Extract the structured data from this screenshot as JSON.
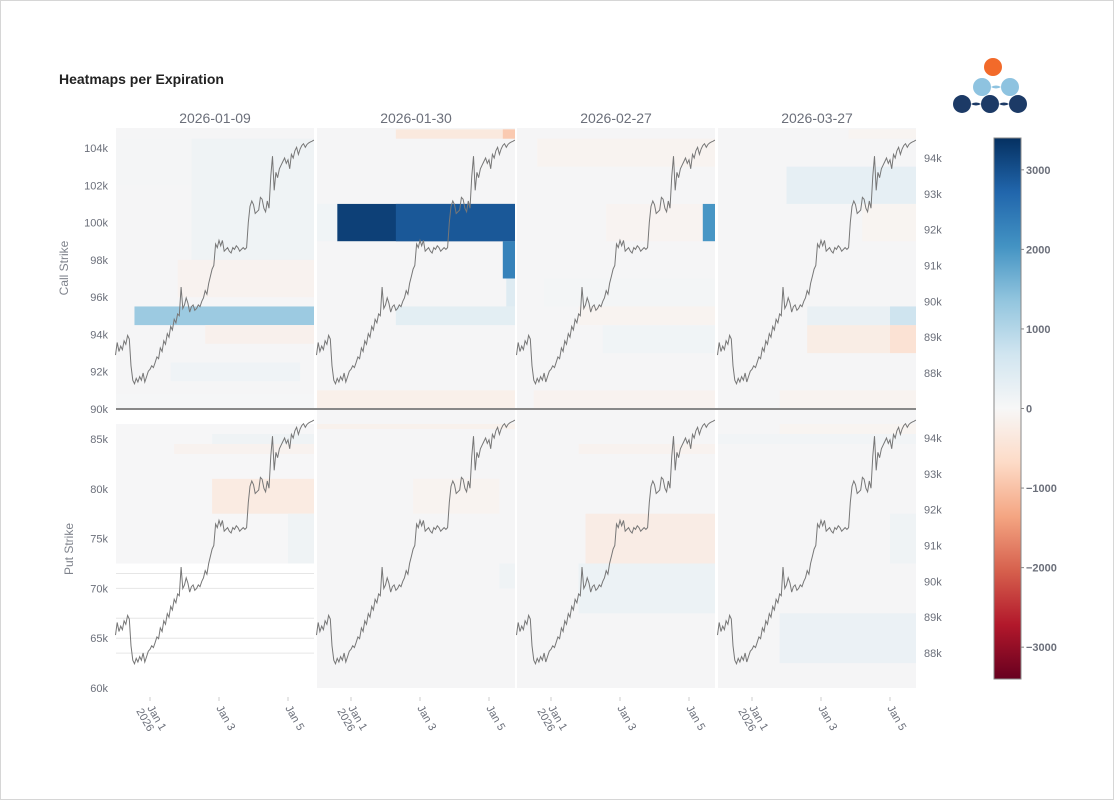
{
  "title": "Heatmaps per Expiration",
  "logo": {
    "name": "brand-logo",
    "colors": {
      "top": "#f26a2a",
      "middle": "#8ec3e0",
      "bottom": "#1c3a66"
    }
  },
  "chart_data": {
    "type": "heatmap",
    "title": "Heatmaps per Expiration",
    "expirations": [
      "2026-01-09",
      "2026-01-30",
      "2026-02-27",
      "2026-03-27"
    ],
    "x_ticks": [
      {
        "label": "Jan 1",
        "sublabel": "2026",
        "day": 1
      },
      {
        "label": "Jan 3",
        "sublabel": "",
        "day": 3
      },
      {
        "label": "Jan 5",
        "sublabel": "",
        "day": 5
      }
    ],
    "x_range_days": [
      0.0,
      5.78
    ],
    "call": {
      "ylabel": "Call Strike",
      "ylim": [
        90000,
        105000
      ],
      "ticks": [
        90000,
        92000,
        94000,
        96000,
        98000,
        100000,
        102000,
        104000
      ],
      "tick_labels": [
        "90k",
        "92k",
        "94k",
        "96k",
        "98k",
        "100k",
        "102k",
        "104k"
      ]
    },
    "put": {
      "ylabel": "Put Strike",
      "ylim": [
        60000,
        86500
      ],
      "ticks": [
        60000,
        65000,
        70000,
        75000,
        80000,
        85000
      ],
      "tick_labels": [
        "60k",
        "65k",
        "70k",
        "75k",
        "80k",
        "85k"
      ]
    },
    "price_axis": {
      "ylim": [
        87500,
        94500
      ],
      "ticks": [
        88000,
        89000,
        90000,
        91000,
        92000,
        93000,
        94000
      ],
      "tick_labels": [
        "88k",
        "89k",
        "90k",
        "91k",
        "92k",
        "93k",
        "94k"
      ]
    },
    "colorbar": {
      "range": [
        -3400,
        3400
      ],
      "ticks": [
        3000,
        2000,
        1000,
        0,
        -1000,
        -2000,
        -3000
      ],
      "tick_labels": [
        "3000",
        "2000",
        "1000",
        "0",
        "−1000",
        "−2000",
        "−3000"
      ],
      "colorscale": "RdBu"
    },
    "panels": [
      {
        "expiration": "2026-01-09",
        "call_cells": [
          {
            "x0": 0.0,
            "x1": 2.2,
            "y0": 102000,
            "y1": 104500,
            "v": 60
          },
          {
            "x0": 2.2,
            "x1": 5.78,
            "y0": 98000,
            "y1": 104500,
            "v": 150
          },
          {
            "x0": 1.8,
            "x1": 5.78,
            "y0": 96000,
            "y1": 98000,
            "v": -120
          },
          {
            "x0": 0.55,
            "x1": 5.78,
            "y0": 94500,
            "y1": 95500,
            "v": 1250
          },
          {
            "x0": 2.6,
            "x1": 5.78,
            "y0": 93500,
            "y1": 94500,
            "v": -160
          },
          {
            "x0": 1.6,
            "x1": 5.35,
            "y0": 91500,
            "y1": 92500,
            "v": 140
          },
          {
            "x0": 0.0,
            "x1": 5.78,
            "y0": 90000,
            "y1": 90800,
            "v": 40
          }
        ],
        "put_cells": [
          {
            "x0": 2.8,
            "x1": 5.78,
            "y0": 84500,
            "y1": 85500,
            "v": 150
          },
          {
            "x0": 1.7,
            "x1": 5.78,
            "y0": 83500,
            "y1": 84500,
            "v": -120
          },
          {
            "x0": 2.8,
            "x1": 5.78,
            "y0": 77500,
            "y1": 81000,
            "v": -300
          },
          {
            "x0": 5.0,
            "x1": 5.78,
            "y0": 72500,
            "y1": 77500,
            "v": 150
          },
          {
            "x0": 0.0,
            "x1": 5.78,
            "y0": 72500,
            "y1": 86500,
            "v": 20
          }
        ]
      },
      {
        "expiration": "2026-01-30",
        "call_cells": [
          {
            "x0": 2.3,
            "x1": 5.78,
            "y0": 104500,
            "y1": 105000,
            "v": -350
          },
          {
            "x0": 5.4,
            "x1": 5.78,
            "y0": 104500,
            "y1": 105000,
            "v": -900
          },
          {
            "x0": 0.6,
            "x1": 5.78,
            "y0": 99000,
            "y1": 101000,
            "v": 3200
          },
          {
            "x0": 2.3,
            "x1": 5.78,
            "y0": 99000,
            "y1": 101000,
            "v": 2900
          },
          {
            "x0": 5.4,
            "x1": 5.78,
            "y0": 97000,
            "y1": 99000,
            "v": 2300
          },
          {
            "x0": 0.0,
            "x1": 0.6,
            "y0": 99000,
            "y1": 101000,
            "v": 120
          },
          {
            "x0": 2.3,
            "x1": 5.78,
            "y0": 94500,
            "y1": 95500,
            "v": 350
          },
          {
            "x0": 5.5,
            "x1": 5.78,
            "y0": 95500,
            "y1": 97000,
            "v": 450
          },
          {
            "x0": 0.0,
            "x1": 5.78,
            "y0": 90000,
            "y1": 91000,
            "v": -180
          }
        ],
        "put_cells": [
          {
            "x0": 0.0,
            "x1": 5.78,
            "y0": 86000,
            "y1": 86500,
            "v": -150
          },
          {
            "x0": 2.8,
            "x1": 5.3,
            "y0": 77500,
            "y1": 81000,
            "v": -100
          },
          {
            "x0": 5.3,
            "x1": 5.78,
            "y0": 70000,
            "y1": 72500,
            "v": 150
          }
        ]
      },
      {
        "expiration": "2026-02-27",
        "call_cells": [
          {
            "x0": 0.6,
            "x1": 5.78,
            "y0": 103000,
            "y1": 104500,
            "v": -100
          },
          {
            "x0": 2.6,
            "x1": 5.78,
            "y0": 99000,
            "y1": 101000,
            "v": -90
          },
          {
            "x0": 5.4,
            "x1": 5.78,
            "y0": 99000,
            "y1": 101000,
            "v": 2000
          },
          {
            "x0": 0.8,
            "x1": 5.78,
            "y0": 95500,
            "y1": 97000,
            "v": 80
          },
          {
            "x0": 1.8,
            "x1": 5.78,
            "y0": 94500,
            "y1": 95500,
            "v": -100
          },
          {
            "x0": 2.5,
            "x1": 5.78,
            "y0": 93000,
            "y1": 94500,
            "v": 120
          },
          {
            "x0": 0.5,
            "x1": 5.78,
            "y0": 90000,
            "y1": 91000,
            "v": -120
          }
        ],
        "put_cells": [
          {
            "x0": 1.8,
            "x1": 5.78,
            "y0": 83500,
            "y1": 84500,
            "v": -120
          },
          {
            "x0": 2.0,
            "x1": 5.78,
            "y0": 72500,
            "y1": 77500,
            "v": -260
          },
          {
            "x0": 1.8,
            "x1": 5.78,
            "y0": 67500,
            "y1": 72500,
            "v": 200
          }
        ]
      },
      {
        "expiration": "2026-03-27",
        "call_cells": [
          {
            "x0": 3.8,
            "x1": 5.78,
            "y0": 104500,
            "y1": 105000,
            "v": -80
          },
          {
            "x0": 2.0,
            "x1": 5.78,
            "y0": 101000,
            "y1": 103000,
            "v": 300
          },
          {
            "x0": 4.2,
            "x1": 5.78,
            "y0": 99000,
            "y1": 101000,
            "v": -80
          },
          {
            "x0": 2.6,
            "x1": 5.78,
            "y0": 94500,
            "y1": 95500,
            "v": 250
          },
          {
            "x0": 5.0,
            "x1": 5.78,
            "y0": 94500,
            "y1": 95500,
            "v": 700
          },
          {
            "x0": 2.6,
            "x1": 5.78,
            "y0": 93000,
            "y1": 94500,
            "v": -250
          },
          {
            "x0": 5.0,
            "x1": 5.78,
            "y0": 93000,
            "y1": 94500,
            "v": -500
          },
          {
            "x0": 1.8,
            "x1": 5.78,
            "y0": 90000,
            "y1": 91000,
            "v": -100
          }
        ],
        "put_cells": [
          {
            "x0": 1.8,
            "x1": 5.78,
            "y0": 85500,
            "y1": 86500,
            "v": -80
          },
          {
            "x0": 0.0,
            "x1": 5.78,
            "y0": 84500,
            "y1": 85500,
            "v": 100
          },
          {
            "x0": 5.0,
            "x1": 5.78,
            "y0": 72500,
            "y1": 77500,
            "v": 150
          },
          {
            "x0": 1.8,
            "x1": 5.78,
            "y0": 62500,
            "y1": 67500,
            "v": 220
          }
        ]
      }
    ],
    "price_series": {
      "name": "underlying-price",
      "x_days": [
        0.0,
        0.05,
        0.1,
        0.15,
        0.2,
        0.25,
        0.3,
        0.35,
        0.4,
        0.45,
        0.5,
        0.55,
        0.6,
        0.65,
        0.7,
        0.75,
        0.8,
        0.85,
        0.9,
        0.95,
        1.0,
        1.05,
        1.1,
        1.15,
        1.2,
        1.25,
        1.3,
        1.35,
        1.4,
        1.45,
        1.5,
        1.55,
        1.6,
        1.65,
        1.7,
        1.75,
        1.8,
        1.85,
        1.9,
        1.95,
        2.0,
        2.05,
        2.1,
        2.15,
        2.2,
        2.25,
        2.3,
        2.35,
        2.4,
        2.45,
        2.5,
        2.55,
        2.6,
        2.65,
        2.7,
        2.75,
        2.8,
        2.85,
        2.9,
        2.95,
        3.0,
        3.05,
        3.1,
        3.15,
        3.2,
        3.25,
        3.3,
        3.35,
        3.4,
        3.45,
        3.5,
        3.55,
        3.6,
        3.65,
        3.7,
        3.75,
        3.8,
        3.85,
        3.9,
        3.95,
        4.0,
        4.05,
        4.1,
        4.15,
        4.2,
        4.25,
        4.3,
        4.35,
        4.4,
        4.45,
        4.5,
        4.55,
        4.6,
        4.65,
        4.7,
        4.75,
        4.8,
        4.85,
        4.9,
        4.95,
        5.0,
        5.05,
        5.1,
        5.15,
        5.2,
        5.25,
        5.3,
        5.35,
        5.4,
        5.45,
        5.5,
        5.55,
        5.6,
        5.65,
        5.7,
        5.75
      ],
      "y": [
        88500,
        88850,
        88600,
        88750,
        88650,
        88900,
        88800,
        89050,
        88950,
        88200,
        87800,
        87700,
        87850,
        87750,
        87900,
        87800,
        88000,
        87750,
        87900,
        88050,
        88100,
        88200,
        88150,
        88300,
        88450,
        88400,
        88700,
        88600,
        88900,
        88800,
        89100,
        89000,
        89300,
        89200,
        89500,
        89400,
        89650,
        89600,
        90400,
        89800,
        89900,
        90100,
        89950,
        89700,
        89850,
        89900,
        89750,
        89800,
        89900,
        89850,
        90000,
        90100,
        90300,
        90200,
        90500,
        90700,
        90900,
        91000,
        91600,
        91500,
        91700,
        91550,
        91700,
        91400,
        91450,
        91500,
        91400,
        91350,
        91500,
        91450,
        91550,
        91500,
        91400,
        91450,
        91500,
        91450,
        91500,
        92200,
        92650,
        92800,
        92700,
        92450,
        92500,
        92550,
        92900,
        92850,
        92600,
        92500,
        92800,
        92600,
        93500,
        94050,
        93100,
        93600,
        93450,
        93700,
        93800,
        93900,
        94000,
        93850,
        93950,
        93700,
        94100,
        94000,
        94200,
        94300,
        94100,
        94250,
        94350,
        94400,
        94300,
        94380,
        94420,
        94450,
        94470,
        94500
      ]
    }
  }
}
